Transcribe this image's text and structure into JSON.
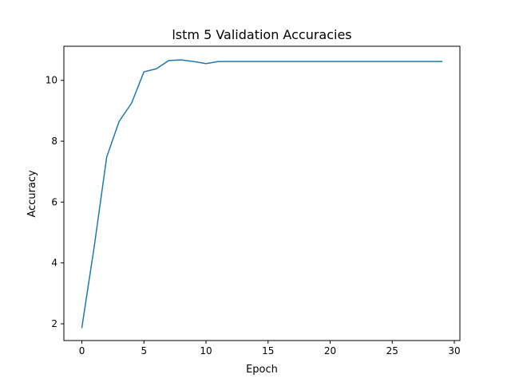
{
  "chart_data": {
    "type": "line",
    "title": "lstm 5 Validation Accuracies",
    "xlabel": "Epoch",
    "ylabel": "Accuracy",
    "xlim": [
      -1.45,
      30.45
    ],
    "ylim": [
      1.45,
      11.12
    ],
    "xticks": [
      0,
      5,
      10,
      15,
      20,
      25,
      30
    ],
    "yticks": [
      2,
      4,
      6,
      8,
      10
    ],
    "grid": false,
    "legend": "none",
    "line_color": "#1f77b4",
    "series": [
      {
        "x": [
          0,
          1,
          2,
          3,
          4,
          5,
          6,
          7,
          8,
          9,
          10,
          11,
          12,
          13,
          14,
          15,
          16,
          17,
          18,
          19,
          20,
          21,
          22,
          23,
          24,
          25,
          26,
          27,
          28,
          29
        ],
        "values": [
          1.88,
          4.55,
          7.48,
          8.65,
          9.25,
          10.28,
          10.38,
          10.65,
          10.67,
          10.62,
          10.55,
          10.62,
          10.62,
          10.62,
          10.62,
          10.62,
          10.62,
          10.62,
          10.62,
          10.62,
          10.62,
          10.62,
          10.62,
          10.62,
          10.62,
          10.62,
          10.62,
          10.62,
          10.62,
          10.62
        ]
      }
    ]
  }
}
